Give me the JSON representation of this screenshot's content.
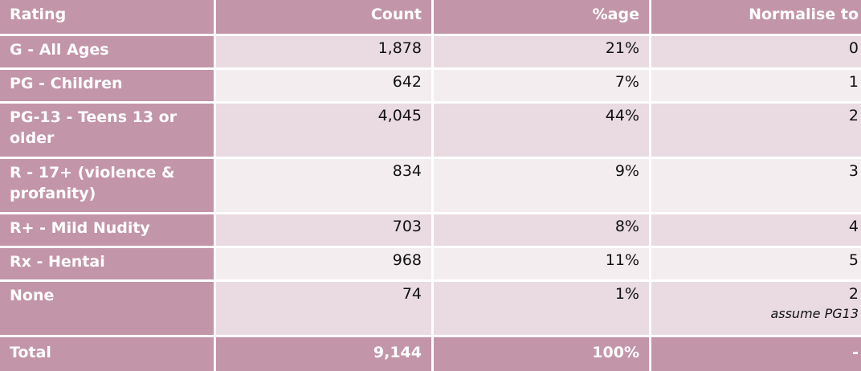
{
  "header": {
    "rating": "Rating",
    "count": "Count",
    "percent": "%age",
    "normalise": "Normalise to"
  },
  "rows": [
    {
      "rating": "G - All Ages",
      "count": "1,878",
      "percent": "21%",
      "normalise": "0"
    },
    {
      "rating": "PG - Children",
      "count": "642",
      "percent": "7%",
      "normalise": "1"
    },
    {
      "rating": "PG-13 - Teens 13 or older",
      "count": "4,045",
      "percent": "44%",
      "normalise": "2"
    },
    {
      "rating": "R - 17+ (violence & profanity)",
      "count": "834",
      "percent": "9%",
      "normalise": "3"
    },
    {
      "rating": "R+ - Mild Nudity",
      "count": "703",
      "percent": "8%",
      "normalise": "4"
    },
    {
      "rating": "Rx - Hentai",
      "count": "968",
      "percent": "11%",
      "normalise": "5"
    },
    {
      "rating": "None",
      "count": "74",
      "percent": "1%",
      "normalise": "2",
      "note": "assume PG13"
    }
  ],
  "total": {
    "rating": "Total",
    "count": "9,144",
    "percent": "100%",
    "normalise": "-"
  }
}
